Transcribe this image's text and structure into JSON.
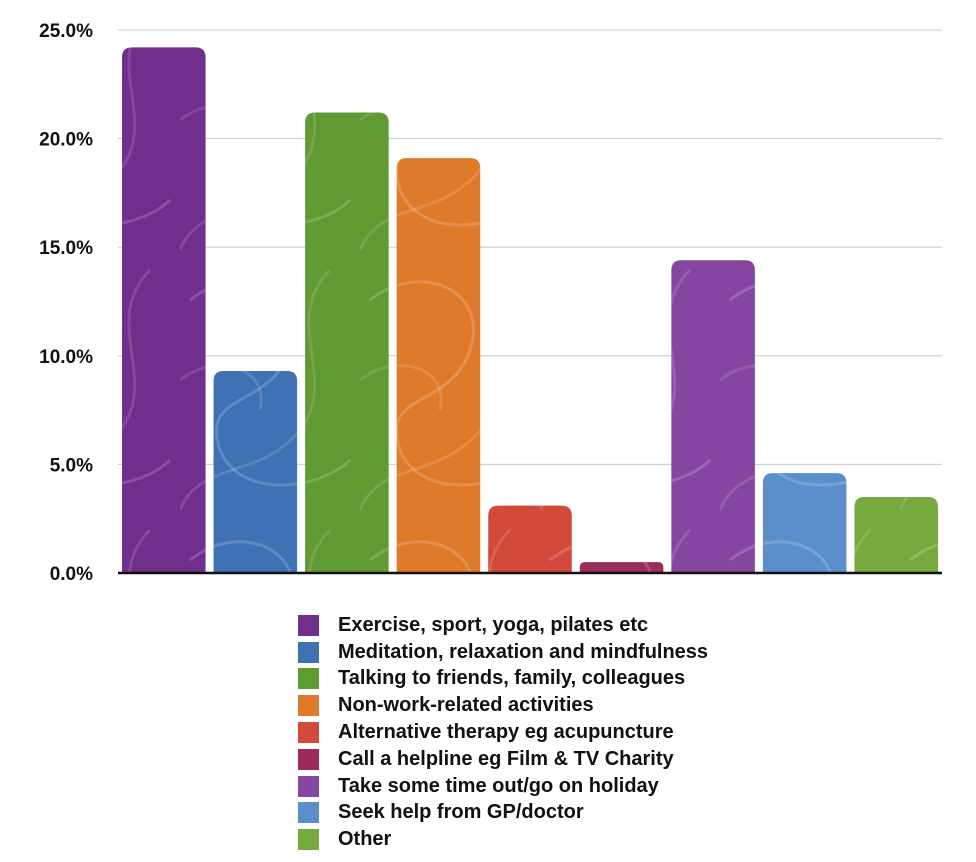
{
  "chart_data": {
    "type": "bar",
    "title": "",
    "xlabel": "",
    "ylabel": "",
    "ylim": [
      0,
      25
    ],
    "yticks": [
      "0.0%",
      "5.0%",
      "10.0%",
      "15.0%",
      "20.0%",
      "25.0%"
    ],
    "grid": true,
    "legend_position": "bottom",
    "series": [
      {
        "name": "Exercise, sport, yoga, pilates etc",
        "value": 24.2,
        "color": "#6f2f8a"
      },
      {
        "name": "Meditation, relaxation and mindfulness",
        "value": 9.3,
        "color": "#3f72b4"
      },
      {
        "name": "Talking to friends, family, colleagues",
        "value": 21.2,
        "color": "#5f9a32"
      },
      {
        "name": "Non-work-related activities",
        "value": 19.1,
        "color": "#e07a2b"
      },
      {
        "name": "Alternative therapy eg acupuncture",
        "value": 3.1,
        "color": "#d24b3a"
      },
      {
        "name": "Call a helpline eg Film & TV Charity",
        "value": 0.5,
        "color": "#9c2a5b"
      },
      {
        "name": "Take some time out/go on holiday",
        "value": 14.4,
        "color": "#8546a1"
      },
      {
        "name": "Seek help from GP/doctor",
        "value": 4.6,
        "color": "#5b8fcb"
      },
      {
        "name": "Other",
        "value": 3.5,
        "color": "#78a93e"
      }
    ]
  }
}
